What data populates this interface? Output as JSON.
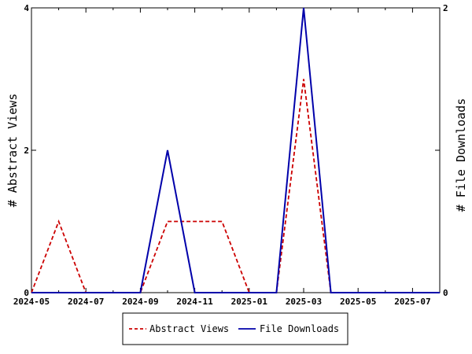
{
  "chart_data": {
    "type": "line",
    "x": [
      "2024-05",
      "2024-06",
      "2024-07",
      "2024-08",
      "2024-09",
      "2024-10",
      "2024-11",
      "2024-12",
      "2025-01",
      "2025-02",
      "2025-03",
      "2025-04",
      "2025-05",
      "2025-06",
      "2025-07",
      "2025-08"
    ],
    "x_ticks": [
      "2024-05",
      "2024-07",
      "2024-09",
      "2024-11",
      "2025-01",
      "2025-03",
      "2025-05",
      "2025-07"
    ],
    "series": [
      {
        "name": "Abstract Views",
        "axis": "left",
        "color": "#cc0000",
        "style": "dashed",
        "values": [
          0,
          1,
          0,
          0,
          0,
          1,
          1,
          1,
          0,
          0,
          3,
          0,
          0,
          0,
          0,
          0
        ]
      },
      {
        "name": "File Downloads",
        "axis": "right",
        "color": "#0000aa",
        "style": "solid",
        "values": [
          0,
          0,
          0,
          0,
          0,
          1,
          0,
          0,
          0,
          0,
          2,
          0,
          0,
          0,
          0,
          0
        ]
      }
    ],
    "ylabel_left": "# Abstract Views",
    "ylabel_right": "# File Downloads",
    "ylim_left": [
      0,
      4
    ],
    "ylim_right": [
      0,
      2
    ],
    "yticks_left": [
      "0",
      "2",
      "4"
    ],
    "yticks_right": [
      "0",
      "1",
      "2"
    ],
    "grid": false,
    "legend_position": "bottom"
  }
}
